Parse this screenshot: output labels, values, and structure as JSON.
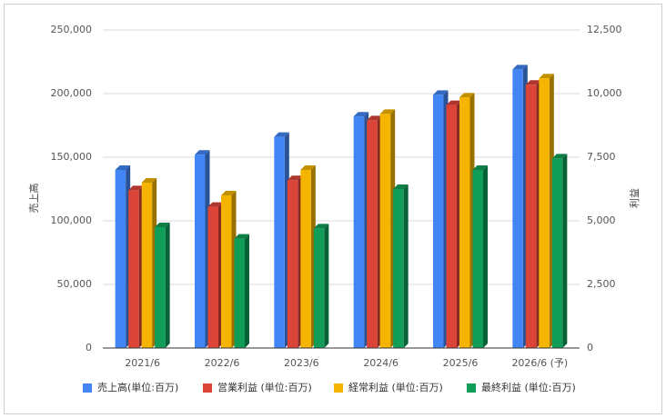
{
  "chart_data": {
    "type": "bar",
    "style": "3d-clustered-columns",
    "categories": [
      "2021/6",
      "2022/6",
      "2023/6",
      "2024/6",
      "2025/6",
      "2026/6 (予)"
    ],
    "y_left_label": "売上高",
    "y_right_label": "利益",
    "y_left_lim": [
      0,
      250000
    ],
    "y_right_lim": [
      0,
      12500
    ],
    "y_left_ticks": [
      "0",
      "50,000",
      "100,000",
      "150,000",
      "200,000",
      "250,000"
    ],
    "y_right_ticks": [
      "0",
      "2,500",
      "5,000",
      "7,500",
      "10,000",
      "12,500"
    ],
    "grid": true,
    "legend_position": "bottom",
    "series": [
      {
        "name": "売上高(単位:百万)",
        "axis": "left",
        "color": "#4285f4",
        "values": [
          140000,
          152000,
          166000,
          182000,
          199000,
          219000
        ]
      },
      {
        "name": "営業利益 (単位:百万)",
        "axis": "right",
        "color": "#db4437",
        "values": [
          6200,
          5550,
          6600,
          8950,
          9550,
          10350
        ]
      },
      {
        "name": "経常利益 (単位:百万)",
        "axis": "right",
        "color": "#f4b400",
        "values": [
          6500,
          6000,
          7000,
          9200,
          9850,
          10600
        ]
      },
      {
        "name": "最終利益 (単位:百万)",
        "axis": "right",
        "color": "#0f9d58",
        "values": [
          4750,
          4300,
          4700,
          6250,
          7000,
          7450
        ]
      }
    ]
  }
}
